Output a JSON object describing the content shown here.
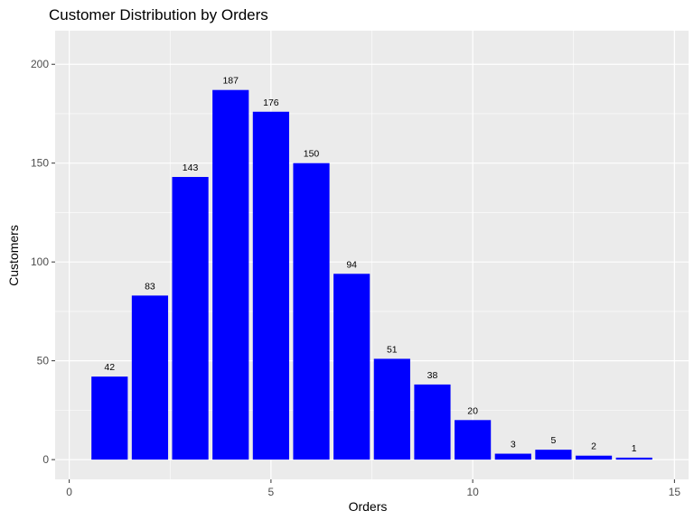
{
  "chart_data": {
    "type": "bar",
    "title": "Customer Distribution by Orders",
    "xlabel": "Orders",
    "ylabel": "Customers",
    "x": [
      1,
      2,
      3,
      4,
      5,
      6,
      7,
      8,
      9,
      10,
      11,
      12,
      13,
      14
    ],
    "values": [
      42,
      83,
      143,
      187,
      176,
      150,
      94,
      51,
      38,
      20,
      3,
      5,
      2,
      1
    ],
    "data_labels": [
      "42",
      "83",
      "143",
      "187",
      "176",
      "150",
      "94",
      "51",
      "38",
      "20",
      "3",
      "5",
      "2",
      "1"
    ],
    "xlim": [
      -0.35,
      15.35
    ],
    "ylim": [
      -10,
      217
    ],
    "x_ticks": [
      0,
      5,
      10,
      15
    ],
    "x_tick_labels": [
      "0",
      "5",
      "10",
      "15"
    ],
    "y_ticks": [
      0,
      50,
      100,
      150,
      200
    ],
    "y_tick_labels": [
      "0",
      "50",
      "100",
      "150",
      "200"
    ],
    "grid": true,
    "legend": "none",
    "bar_color": "#0000FF",
    "panel_background": "#EBEBEB",
    "grid_color": "#FFFFFF"
  }
}
